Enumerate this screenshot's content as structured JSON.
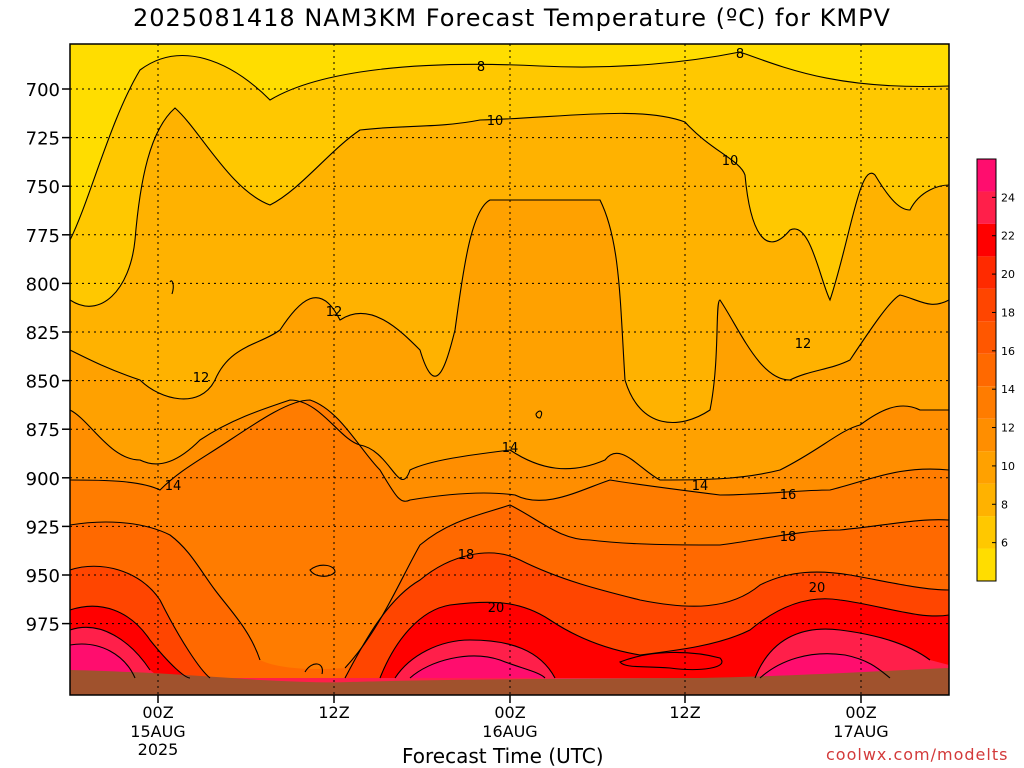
{
  "title": "2025081418 NAM3KM Forecast Temperature (ºC) for KMPV",
  "xlabel": "Forecast Time (UTC)",
  "credit": "coolwx.com/modelts",
  "chart_data": {
    "type": "heatmap",
    "title": "2025081418 NAM3KM Forecast Temperature (ºC) for KMPV",
    "xlabel": "Forecast Time (UTC)",
    "ylabel": "",
    "y_axis": "pressure (hPa), inverted",
    "yticks": [
      700,
      725,
      750,
      775,
      800,
      825,
      850,
      875,
      900,
      925,
      950,
      975
    ],
    "xticks": [
      {
        "label": "00Z",
        "sub": [
          "15AUG",
          "2025"
        ]
      },
      {
        "label": "12Z",
        "sub": []
      },
      {
        "label": "00Z",
        "sub": [
          "16AUG"
        ]
      },
      {
        "label": "12Z",
        "sub": []
      },
      {
        "label": "00Z",
        "sub": [
          "17AUG"
        ]
      }
    ],
    "colorbar": {
      "ticks": [
        6,
        8,
        10,
        12,
        14,
        16,
        18,
        20,
        22,
        24
      ],
      "range": [
        4,
        26
      ],
      "colors": [
        "#ffdd00",
        "#ffc800",
        "#ffb200",
        "#ffa100",
        "#ff8e00",
        "#ff7c00",
        "#ff6900",
        "#ff5700",
        "#ff4500",
        "#ff2a00",
        "#ff0000",
        "#ff1f4a",
        "#ff0d6e"
      ]
    },
    "contour_labels": [
      "8",
      "8",
      "10",
      "10",
      "12",
      "12",
      "12",
      "14",
      "14",
      "14",
      "16",
      "18",
      "18",
      "20",
      "20"
    ],
    "ground_color": "#a0522d",
    "grid": true
  }
}
